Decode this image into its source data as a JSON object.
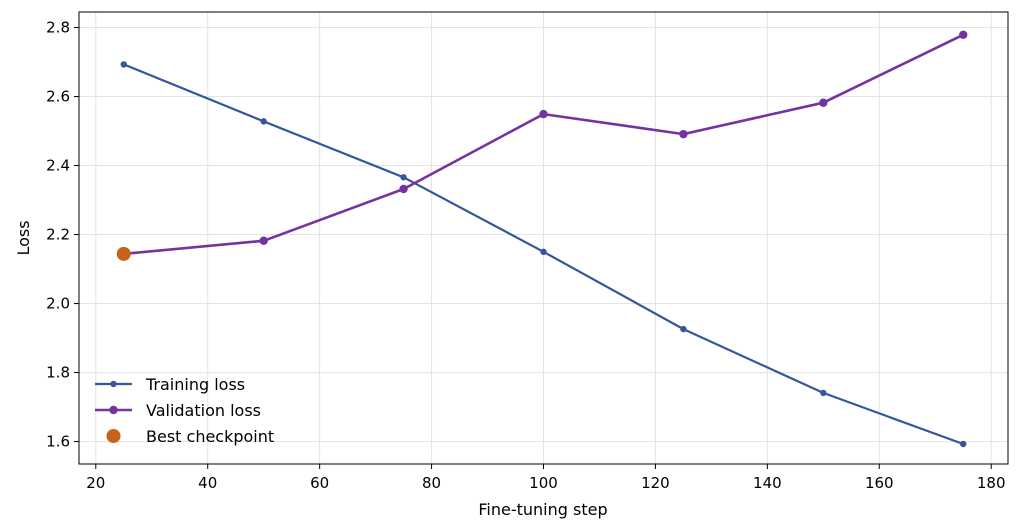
{
  "chart_data": {
    "type": "line",
    "title": "",
    "xlabel": "Fine-tuning step",
    "ylabel": "Loss",
    "xlim": [
      17,
      183
    ],
    "ylim": [
      1.535,
      2.845
    ],
    "xticks": [
      20,
      40,
      60,
      80,
      100,
      120,
      140,
      160,
      180
    ],
    "xtick_labels": [
      "20",
      "40",
      "60",
      "80",
      "100",
      "120",
      "140",
      "160",
      "180"
    ],
    "yticks": [
      1.6,
      1.8,
      2.0,
      2.2,
      2.4,
      2.6,
      2.8
    ],
    "ytick_labels": [
      "1.6",
      "1.8",
      "2.0",
      "2.2",
      "2.4",
      "2.6",
      "2.8"
    ],
    "grid": true,
    "legend_position": "lower-left",
    "x": [
      25,
      50,
      75,
      100,
      125,
      150,
      175
    ],
    "series": [
      {
        "name": "Training loss",
        "color": "#34579a",
        "marker": "small-dot",
        "values": [
          2.693,
          2.528,
          2.366,
          2.15,
          1.926,
          1.741,
          1.593
        ]
      },
      {
        "name": "Validation loss",
        "color": "#7433a1",
        "marker": "dot",
        "values": [
          2.144,
          2.182,
          2.332,
          2.549,
          2.491,
          2.582,
          2.779
        ]
      }
    ],
    "highlight": {
      "name": "Best checkpoint",
      "color": "#c8621a",
      "x": 25,
      "y": 2.144
    }
  }
}
